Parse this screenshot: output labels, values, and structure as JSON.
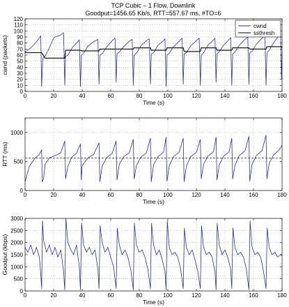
{
  "title_line1": "TCP Cubic – 1 Flow, Downlink",
  "title_line2": "Goodput=1456.65 Kb/s, RTT=557.67 ms, #TO=6",
  "colors": {
    "primary": "#2b2f8f",
    "secondary": "#000000",
    "grid": "#9a9a9a"
  },
  "chart_data": [
    {
      "type": "line",
      "xlabel": "Time (s)",
      "ylabel": "cwnd (packets)",
      "xlim": [
        0,
        180
      ],
      "ylim": [
        0,
        120
      ],
      "xticks": [
        0,
        20,
        40,
        60,
        80,
        100,
        120,
        140,
        160,
        180
      ],
      "yticks": [
        0,
        10,
        20,
        30,
        40,
        50,
        60,
        70,
        80,
        90,
        100,
        110,
        120
      ],
      "grid": true,
      "legend_position": "top-right",
      "series": [
        {
          "name": "cwnd",
          "color": "#2b2f8f",
          "x": [
            0,
            4,
            8,
            11,
            11.6,
            12.4,
            14,
            17,
            19,
            20,
            21,
            24,
            27,
            27.8,
            28.4,
            30,
            33,
            36,
            38,
            38.8,
            39.4,
            41,
            44,
            48,
            51,
            51.8,
            52.4,
            54,
            57,
            61,
            63,
            63.8,
            64.4,
            66,
            69,
            73,
            75,
            75.8,
            76.4,
            78,
            81,
            85,
            87,
            87.8,
            88.4,
            90,
            93,
            97,
            98,
            98.8,
            99.4,
            101,
            104,
            108,
            110,
            110.8,
            111.4,
            113,
            116,
            120,
            122,
            122.8,
            123.4,
            125,
            128,
            132,
            133,
            133.8,
            134.4,
            136,
            139,
            143,
            144,
            144.8,
            145.4,
            147,
            150,
            154,
            156,
            156.8,
            157.4,
            159,
            162,
            166,
            168,
            168.8,
            169.4,
            171,
            174,
            177,
            179,
            179.6,
            180
          ],
          "values": [
            65,
            72,
            82,
            92,
            8,
            55,
            58,
            72,
            83,
            88,
            90,
            92,
            97,
            10,
            58,
            60,
            72,
            80,
            85,
            8,
            60,
            63,
            75,
            82,
            86,
            12,
            60,
            62,
            73,
            84,
            88,
            15,
            62,
            65,
            74,
            83,
            86,
            10,
            60,
            63,
            75,
            84,
            87,
            12,
            62,
            64,
            76,
            84,
            87,
            8,
            60,
            63,
            74,
            83,
            88,
            12,
            62,
            64,
            75,
            84,
            88,
            10,
            60,
            64,
            76,
            85,
            88,
            15,
            62,
            66,
            76,
            86,
            89,
            10,
            62,
            65,
            76,
            86,
            90,
            12,
            64,
            66,
            78,
            88,
            92,
            10,
            64,
            68,
            80,
            90,
            94,
            20,
            62
          ]
        },
        {
          "name": "ssthresh",
          "color": "#000000",
          "x": [
            0,
            11.6,
            14,
            27.8,
            28.4,
            38.8,
            39.4,
            51.8,
            52.4,
            63.8,
            64.4,
            75.8,
            76.4,
            87.8,
            88.4,
            98.8,
            99.4,
            110.8,
            111.4,
            122.8,
            123.4,
            133.8,
            134.4,
            144.8,
            145.4,
            156.8,
            157.4,
            168.8,
            169.4,
            179.6,
            180
          ],
          "values": [
            64,
            64,
            55,
            55,
            68,
            68,
            67,
            67,
            70,
            70,
            70,
            70,
            72,
            72,
            68,
            68,
            72,
            72,
            66,
            66,
            72,
            72,
            68,
            68,
            72,
            72,
            70,
            70,
            74,
            74,
            72
          ]
        }
      ]
    },
    {
      "type": "line",
      "xlabel": "Time (s)",
      "ylabel": "RTT (ms)",
      "xlim": [
        0,
        180
      ],
      "ylim": [
        0,
        1250
      ],
      "xticks": [
        0,
        20,
        40,
        60,
        80,
        100,
        120,
        140,
        160,
        180
      ],
      "yticks": [
        0,
        500,
        1000
      ],
      "grid": true,
      "series": [
        {
          "name": "rtt",
          "color": "#2b2f8f",
          "x": [
            0,
            3,
            7,
            10,
            11.6,
            12,
            13,
            14,
            17,
            21,
            25,
            27.8,
            28.4,
            30,
            33,
            36,
            38.8,
            39.4,
            40,
            44,
            48,
            51.8,
            52.4,
            54,
            57,
            61,
            63.8,
            64.4,
            66,
            69,
            73,
            75.8,
            76.4,
            78,
            81,
            85,
            87.8,
            88.4,
            90,
            93,
            97,
            98.8,
            99.4,
            101,
            104,
            108,
            110.8,
            111.4,
            113,
            116,
            120,
            122.8,
            123.4,
            125,
            128,
            132,
            133.8,
            134.4,
            136,
            139,
            143,
            144.8,
            145.4,
            147,
            150,
            154,
            156.8,
            157.4,
            159,
            162,
            166,
            168.8,
            169.4,
            171,
            174,
            178,
            180
          ],
          "values": [
            150,
            420,
            560,
            620,
            700,
            150,
            200,
            450,
            560,
            600,
            650,
            850,
            200,
            420,
            580,
            640,
            800,
            180,
            430,
            560,
            620,
            820,
            150,
            420,
            560,
            640,
            850,
            180,
            450,
            580,
            650,
            880,
            200,
            430,
            570,
            650,
            900,
            150,
            440,
            580,
            660,
            920,
            160,
            430,
            580,
            660,
            900,
            150,
            420,
            580,
            660,
            880,
            200,
            450,
            590,
            670,
            920,
            180,
            440,
            590,
            670,
            900,
            200,
            430,
            600,
            680,
            930,
            160,
            450,
            600,
            690,
            950,
            200,
            470,
            610,
            700,
            780
          ]
        },
        {
          "name": "average",
          "color": "#000000",
          "x": [
            0,
            180
          ],
          "values": [
            557.67,
            557.67
          ]
        }
      ]
    },
    {
      "type": "line",
      "xlabel": "Time (s)",
      "ylabel": "Goodput (kbps)",
      "xlim": [
        0,
        180
      ],
      "ylim": [
        0,
        3000
      ],
      "xticks": [
        0,
        20,
        40,
        60,
        80,
        100,
        120,
        140,
        160,
        180
      ],
      "yticks": [
        0,
        500,
        1000,
        1500,
        2000,
        2500,
        3000
      ],
      "grid": true,
      "series": [
        {
          "name": "goodput",
          "color": "#2b2f8f",
          "x": [
            0,
            2,
            4,
            6,
            8,
            10,
            11,
            11.6,
            12.2,
            13,
            15,
            17,
            19,
            21,
            23,
            25,
            27,
            27.8,
            28.6,
            30,
            32,
            34,
            36,
            38,
            38.8,
            39.6,
            41,
            43,
            45,
            47,
            49,
            51,
            51.8,
            52.6,
            54,
            56,
            58,
            60,
            62,
            63.8,
            64.6,
            66,
            68,
            70,
            72,
            74,
            75.8,
            76.6,
            78,
            80,
            82,
            84,
            86,
            87.8,
            88.6,
            90,
            92,
            94,
            96,
            98,
            98.8,
            99.6,
            101,
            103,
            105,
            107,
            109,
            110.8,
            111.6,
            113,
            115,
            117,
            119,
            121,
            122.8,
            123.6,
            125,
            127,
            129,
            131,
            133,
            133.8,
            134.6,
            136,
            138,
            140,
            142,
            144,
            144.8,
            145.6,
            147,
            149,
            151,
            153,
            155,
            156.8,
            157.6,
            159,
            161,
            163,
            165,
            167,
            168.8,
            169.6,
            171,
            173,
            175,
            177,
            179,
            180
          ],
          "values": [
            1800,
            1600,
            1900,
            1500,
            1800,
            1400,
            700,
            100,
            2900,
            2100,
            1600,
            1900,
            1500,
            1800,
            1400,
            1700,
            800,
            50,
            3000,
            2000,
            1700,
            1500,
            1900,
            1000,
            50,
            2800,
            1900,
            1600,
            1800,
            1500,
            1700,
            900,
            100,
            2700,
            2000,
            1600,
            1800,
            1400,
            1000,
            100,
            2600,
            1900,
            1500,
            1700,
            1400,
            900,
            50,
            2800,
            1900,
            1600,
            1700,
            1400,
            900,
            100,
            2800,
            1900,
            1500,
            1700,
            1300,
            800,
            50,
            2900,
            1800,
            1500,
            1600,
            1400,
            900,
            100,
            2600,
            1800,
            1500,
            1700,
            1300,
            800,
            100,
            2700,
            1800,
            1500,
            1600,
            1400,
            800,
            50,
            2800,
            1900,
            1500,
            1700,
            1400,
            900,
            100,
            2600,
            1800,
            1500,
            1600,
            1400,
            900,
            50,
            2900,
            1800,
            1500,
            1600,
            1400,
            800,
            100,
            2600,
            1800,
            1500,
            1600,
            1400,
            1500,
            1450
          ]
        }
      ]
    }
  ]
}
